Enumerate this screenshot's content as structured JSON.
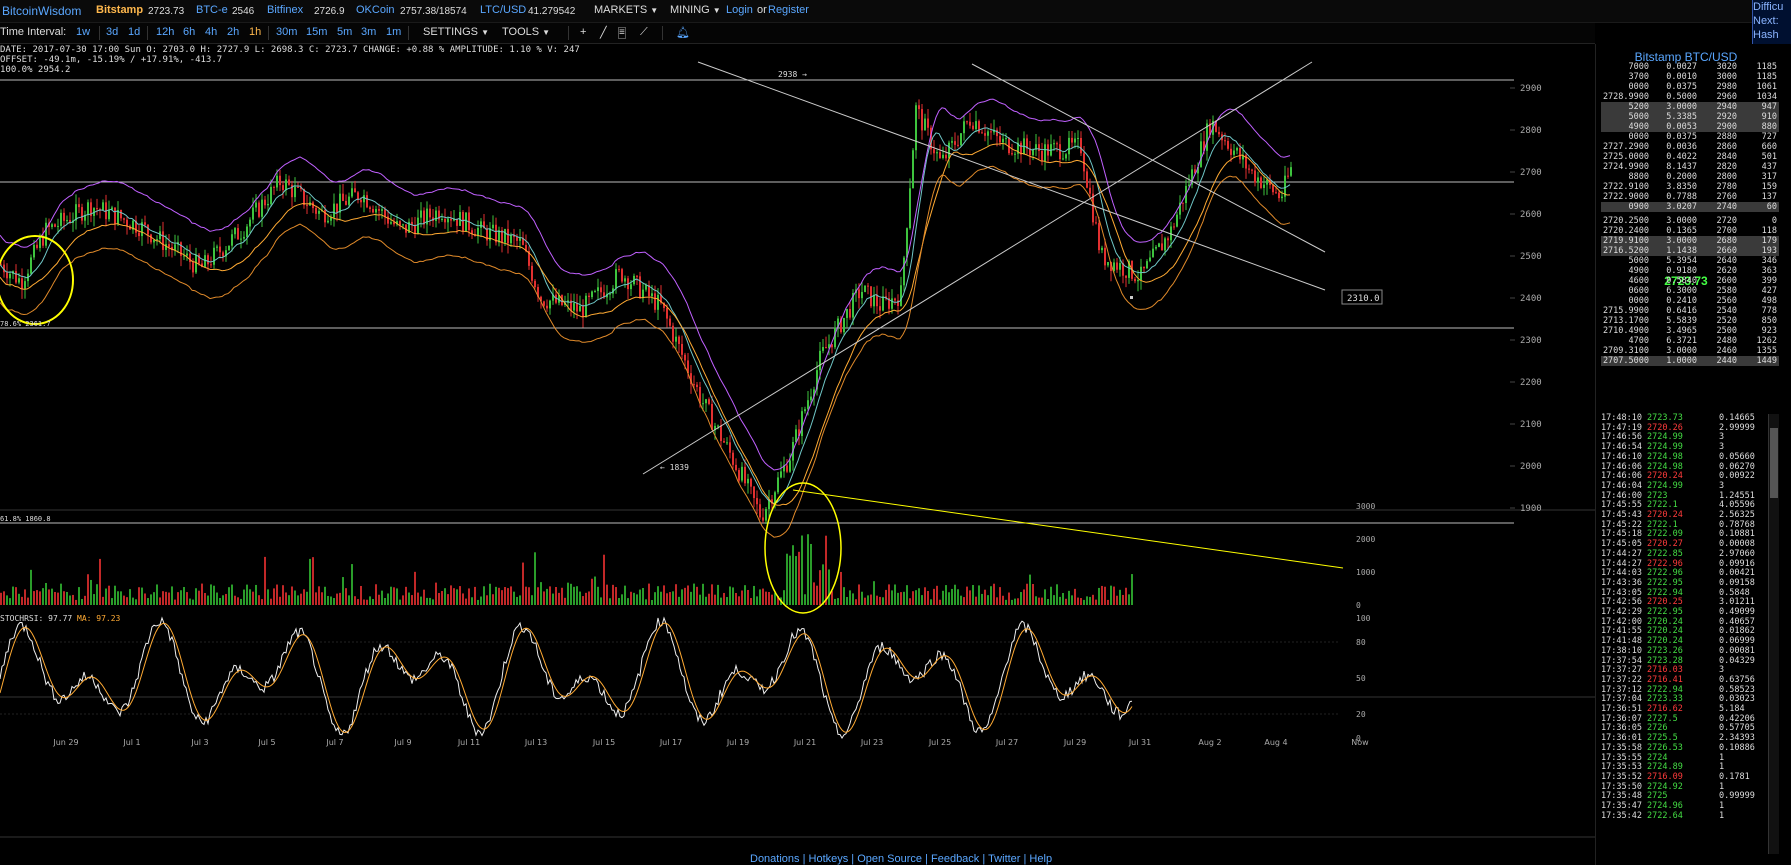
{
  "topbar": {
    "brand": "BitcoinWisdom",
    "exchanges": [
      {
        "name": "Bitstamp",
        "price": "2723.73",
        "active": true
      },
      {
        "name": "BTC-e",
        "price": "2546"
      },
      {
        "name": "Bitfinex",
        "price": "2726.9"
      },
      {
        "name": "OKCoin",
        "price": "2757.38/18574"
      },
      {
        "name": "LTC/USD",
        "price": "41.279542"
      }
    ],
    "menu_markets": "MARKETS",
    "menu_mining": "MINING",
    "login": "Login",
    "or": "or",
    "register": "Register",
    "difficulty": [
      "Difficu",
      "Next:",
      "Hash Ra"
    ]
  },
  "toolbar": {
    "label": "Time Interval:",
    "intervals": [
      "1w",
      "3d",
      "1d",
      "12h",
      "6h",
      "4h",
      "2h",
      "1h",
      "30m",
      "15m",
      "5m",
      "3m",
      "1m"
    ],
    "active_interval": "1h",
    "settings": "SETTINGS",
    "tools": "TOOLS",
    "tool_icons": [
      "crosshair-icon",
      "line-tool-icon",
      "hlines-tool-icon",
      "fib-tool-icon",
      "alert-bell-icon"
    ]
  },
  "info": {
    "line1": "DATE: 2017-07-30 17:00 Sun   O: 2703.0   H: 2727.9   L: 2698.3   C: 2723.7   CHANGE: +0.88 %   AMPLITUDE: 1.10 %   V: 247",
    "line2": "OFFSET: -49.1m, -15.19% / +17.91%, -413.7",
    "line3": "100.0% 2954.2"
  },
  "chart": {
    "fib_labels": {
      "top": "100.0% 2954.2",
      "mid": "78.6% 2361.7",
      "bottom": "61.8% 1860.8"
    },
    "annotations": {
      "high": "2938",
      "low": "1839",
      "price_tag": "2310.0"
    },
    "y_ticks_price": [
      "2900",
      "2800",
      "2700",
      "2600",
      "2500",
      "2400",
      "2300",
      "2200",
      "2100",
      "2000",
      "1900"
    ],
    "y_ticks_volume": [
      "3000",
      "2000",
      "1000",
      "0"
    ],
    "y_ticks_stoch": [
      "100",
      "80",
      "50",
      "20",
      "0"
    ],
    "stoch_label": "STOCHRSI: 97.77",
    "stoch_ma": "MA: 97.23",
    "x_labels": [
      "Jun 29",
      "Jul 1",
      "Jul 3",
      "Jul 5",
      "Jul 7",
      "Jul 9",
      "Jul 11",
      "Jul 13",
      "Jul 15",
      "Jul 17",
      "Jul 19",
      "Jul 21",
      "Jul 23",
      "Jul 25",
      "Jul 27",
      "Jul 29",
      "Jul 31",
      "Aug 2",
      "Aug 4",
      "Now"
    ]
  },
  "orderbook": {
    "title": "Bitstamp BTC/USD",
    "asks": [
      [
        "7000",
        "0.0027",
        "3020",
        "1185",
        false
      ],
      [
        "3700",
        "0.0010",
        "3000",
        "1185",
        false
      ],
      [
        "0000",
        "0.0375",
        "2980",
        "1061",
        false
      ],
      [
        "2728.9900",
        "0.5000",
        "2960",
        "1034",
        false
      ],
      [
        "5200",
        "3.0000",
        "2940",
        "947",
        true
      ],
      [
        "5000",
        "5.3385",
        "2920",
        "910",
        true
      ],
      [
        "4900",
        "0.0053",
        "2900",
        "880",
        true
      ],
      [
        "0000",
        "0.0375",
        "2880",
        "727",
        false
      ],
      [
        "2727.2900",
        "0.0036",
        "2860",
        "660",
        false
      ],
      [
        "2725.0000",
        "0.4022",
        "2840",
        "501",
        false
      ],
      [
        "2724.9900",
        "8.1437",
        "2820",
        "437",
        false
      ],
      [
        "8800",
        "0.2000",
        "2800",
        "317",
        false
      ],
      [
        "2722.9100",
        "3.8350",
        "2780",
        "159",
        false
      ],
      [
        "2722.9000",
        "0.7788",
        "2760",
        "137",
        false
      ],
      [
        "0900",
        "3.0207",
        "2740",
        "60",
        true
      ]
    ],
    "last": "2723.73",
    "bids": [
      [
        "2720.2500",
        "3.0000",
        "2720",
        "0",
        false
      ],
      [
        "2720.2400",
        "0.1365",
        "2700",
        "118",
        false
      ],
      [
        "2719.9100",
        "3.0000",
        "2680",
        "179",
        true
      ],
      [
        "2716.5200",
        "1.1438",
        "2660",
        "193",
        true
      ],
      [
        "5000",
        "5.3954",
        "2640",
        "346",
        false
      ],
      [
        "4900",
        "0.9180",
        "2620",
        "363",
        false
      ],
      [
        "4600",
        "0.5840",
        "2600",
        "399",
        false
      ],
      [
        "0600",
        "6.3000",
        "2580",
        "427",
        false
      ],
      [
        "0000",
        "0.2410",
        "2560",
        "498",
        false
      ],
      [
        "2715.9900",
        "0.6416",
        "2540",
        "778",
        false
      ],
      [
        "2713.1700",
        "5.5839",
        "2520",
        "850",
        false
      ],
      [
        "2710.4900",
        "3.4965",
        "2500",
        "923",
        false
      ],
      [
        "4700",
        "6.3721",
        "2480",
        "1262",
        false
      ],
      [
        "2709.3100",
        "3.0000",
        "2460",
        "1355",
        false
      ],
      [
        "2707.5000",
        "1.0000",
        "2440",
        "1449",
        true
      ]
    ]
  },
  "trades": [
    [
      "17:48:10",
      "2723.73",
      "0.14665",
      "buy"
    ],
    [
      "17:47:19",
      "2720.26",
      "2.99999",
      "sell"
    ],
    [
      "17:46:56",
      "2724.99",
      "3",
      "buy"
    ],
    [
      "17:46:54",
      "2724.99",
      "3",
      "buy"
    ],
    [
      "17:46:10",
      "2724.98",
      "0.05660",
      "buy"
    ],
    [
      "17:46:06",
      "2724.98",
      "0.06270",
      "buy"
    ],
    [
      "17:46:06",
      "2720.24",
      "0.00922",
      "sell"
    ],
    [
      "17:46:04",
      "2724.99",
      "3",
      "buy"
    ],
    [
      "17:46:00",
      "2723",
      "1.24551",
      "buy"
    ],
    [
      "17:45:55",
      "2722.1",
      "4.05596",
      "buy"
    ],
    [
      "17:45:43",
      "2720.24",
      "2.56325",
      "sell"
    ],
    [
      "17:45:22",
      "2722.1",
      "0.78768",
      "buy"
    ],
    [
      "17:45:18",
      "2722.09",
      "0.10881",
      "buy"
    ],
    [
      "17:45:05",
      "2720.27",
      "0.00008",
      "sell"
    ],
    [
      "17:44:27",
      "2722.85",
      "2.97060",
      "buy"
    ],
    [
      "17:44:27",
      "2722.96",
      "0.09916",
      "sell"
    ],
    [
      "17:44:03",
      "2722.96",
      "0.00421",
      "buy"
    ],
    [
      "17:43:36",
      "2722.95",
      "0.09158",
      "buy"
    ],
    [
      "17:43:05",
      "2722.94",
      "0.5848",
      "buy"
    ],
    [
      "17:42:56",
      "2720.25",
      "3.01211",
      "sell"
    ],
    [
      "17:42:29",
      "2722.95",
      "0.49099",
      "buy"
    ],
    [
      "17:42:00",
      "2720.24",
      "0.40657",
      "buy"
    ],
    [
      "17:41:55",
      "2720.24",
      "0.01862",
      "buy"
    ],
    [
      "17:41:48",
      "2720.24",
      "0.06999",
      "buy"
    ],
    [
      "17:38:10",
      "2723.26",
      "0.00081",
      "buy"
    ],
    [
      "17:37:54",
      "2723.28",
      "0.04329",
      "buy"
    ],
    [
      "17:37:27",
      "2716.03",
      "3",
      "sell"
    ],
    [
      "17:37:22",
      "2716.41",
      "0.63756",
      "sell"
    ],
    [
      "17:37:12",
      "2722.94",
      "0.58523",
      "buy"
    ],
    [
      "17:37:04",
      "2723.33",
      "0.03023",
      "buy"
    ],
    [
      "17:36:51",
      "2716.62",
      "5.184",
      "sell"
    ],
    [
      "17:36:07",
      "2727.5",
      "0.42206",
      "buy"
    ],
    [
      "17:36:05",
      "2726",
      "0.57705",
      "buy"
    ],
    [
      "17:36:01",
      "2725.5",
      "2.34393",
      "buy"
    ],
    [
      "17:35:58",
      "2726.53",
      "0.10886",
      "buy"
    ],
    [
      "17:35:55",
      "2724",
      "1",
      "buy"
    ],
    [
      "17:35:53",
      "2724.89",
      "1",
      "buy"
    ],
    [
      "17:35:52",
      "2716.09",
      "0.1781",
      "sell"
    ],
    [
      "17:35:50",
      "2724.92",
      "1",
      "buy"
    ],
    [
      "17:35:48",
      "2725",
      "0.99999",
      "buy"
    ],
    [
      "17:35:47",
      "2724.96",
      "1",
      "buy"
    ],
    [
      "17:35:42",
      "2722.64",
      "1",
      "buy"
    ]
  ],
  "bottom_links": "Donations  |  Hotkeys  |  Open Source  |  Feedback  |  Twitter  |  Help",
  "colors": {
    "accent": "#5aa7ff",
    "up": "#44dd44",
    "down": "#ff3b3b",
    "highlight": "#ffff00",
    "bb": "#c060ff",
    "ma": "#ffaa33"
  }
}
